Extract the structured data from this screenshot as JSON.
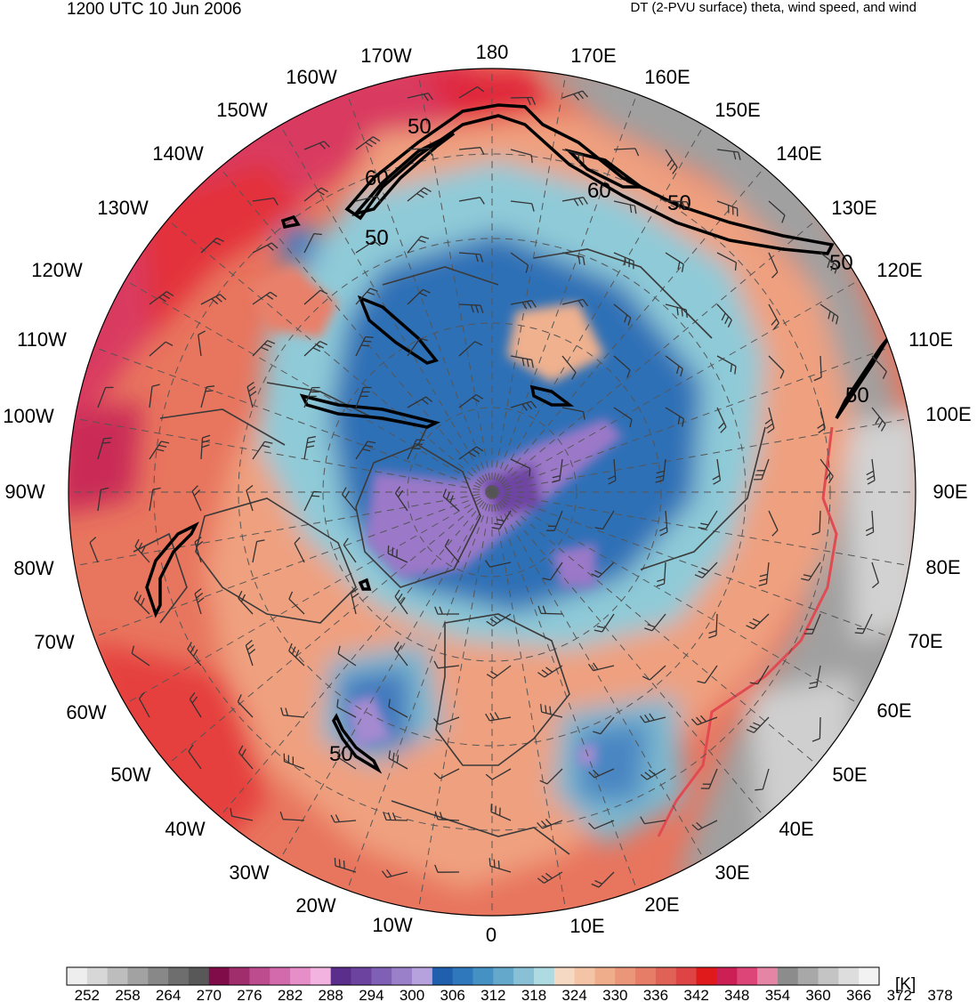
{
  "header": {
    "datetime": "1200 UTC 10 Jun 2006",
    "description": "DT (2-PVU surface) theta, wind speed, and wind"
  },
  "map": {
    "projection": "north-polar-stereographic",
    "longitude_labels": [
      "180",
      "170E",
      "160E",
      "150E",
      "140E",
      "130E",
      "120E",
      "110E",
      "100E",
      "90E",
      "80E",
      "70E",
      "60E",
      "50E",
      "40E",
      "30E",
      "20E",
      "10E",
      "0",
      "10W",
      "20W",
      "30W",
      "40W",
      "50W",
      "60W",
      "70W",
      "80W",
      "90W",
      "100W",
      "110W",
      "120W",
      "130W",
      "140W",
      "150W",
      "160W",
      "170W"
    ],
    "wind_speed_contour_labels": [
      "50",
      "60",
      "50",
      "60",
      "50",
      "50",
      "50",
      "50"
    ],
    "colors": {
      "warm_theta": "#e8574f",
      "very_warm_theta": "#d93a60",
      "cool_theta": "#8fd0dc",
      "cold_theta": "#2e68b0",
      "coldest_theta": "#9b78c8",
      "high_theta_gray": "#9a9a9a",
      "contour": "#000000",
      "coastline": "#3a3a3a"
    }
  },
  "colorbar": {
    "unit": "[K]",
    "tick_labels": [
      "252",
      "258",
      "264",
      "270",
      "276",
      "282",
      "288",
      "294",
      "300",
      "306",
      "312",
      "318",
      "324",
      "330",
      "336",
      "342",
      "348",
      "354",
      "360",
      "366",
      "372",
      "378"
    ],
    "colors": [
      "#eeeeee",
      "#d7d7d7",
      "#bdbdbd",
      "#a2a2a2",
      "#888888",
      "#6e6e6e",
      "#585858",
      "#800d4a",
      "#a02d6c",
      "#bd4c8e",
      "#d36aab",
      "#e68ec7",
      "#f2b3e0",
      "#5a2e8a",
      "#6c44a0",
      "#8060b4",
      "#9a80c8",
      "#b6a2dc",
      "#1f5fae",
      "#2f78bb",
      "#4691c4",
      "#64a9cc",
      "#88c1d6",
      "#addbe1",
      "#f5d9c2",
      "#f3c4a6",
      "#efad8c",
      "#eb9678",
      "#e67d66",
      "#e06256",
      "#de4444",
      "#e01a1a",
      "#cc1f55",
      "#dd4477",
      "#e585a6",
      "#8c8c8c",
      "#a8a8a8",
      "#c4c4c4",
      "#dddddd",
      "#f2f2f2"
    ]
  }
}
